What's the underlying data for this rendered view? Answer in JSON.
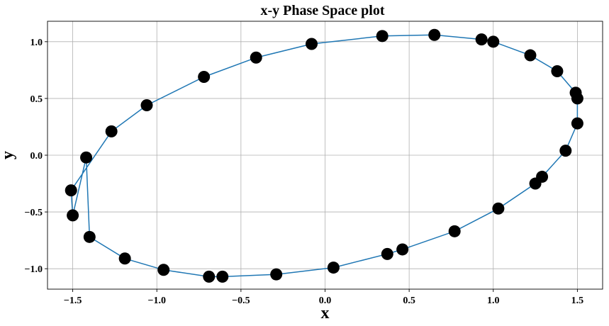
{
  "chart_data": {
    "type": "line",
    "title": "x-y Phase Space plot",
    "xlabel": "x",
    "ylabel": "y",
    "xlim": [
      -1.65,
      1.65
    ],
    "ylim": [
      -1.18,
      1.18
    ],
    "xticks": [
      -1.5,
      -1.0,
      -0.5,
      0.0,
      0.5,
      1.0,
      1.5
    ],
    "xtick_labels": [
      "−1.5",
      "−1.0",
      "−0.5",
      "0.0",
      "0.5",
      "1.0",
      "1.5"
    ],
    "yticks": [
      -1.0,
      -0.5,
      0.0,
      0.5,
      1.0
    ],
    "ytick_labels": [
      "−1.0",
      "−0.5",
      "0.0",
      "0.5",
      "1.0"
    ],
    "grid": true,
    "line_color": "#1f77b4",
    "marker_color": "#000000",
    "series": [
      {
        "points": [
          {
            "x": -0.29,
            "y": -1.05
          },
          {
            "x": -0.61,
            "y": -1.07
          },
          {
            "x": -0.69,
            "y": -1.07
          },
          {
            "x": -0.96,
            "y": -1.01
          },
          {
            "x": -1.19,
            "y": -0.91
          },
          {
            "x": -1.4,
            "y": -0.72
          },
          {
            "x": -1.42,
            "y": -0.02
          },
          {
            "x": -1.5,
            "y": -0.53
          },
          {
            "x": -1.51,
            "y": -0.31
          },
          {
            "x": -1.27,
            "y": 0.21
          },
          {
            "x": -1.06,
            "y": 0.44
          },
          {
            "x": -0.72,
            "y": 0.69
          },
          {
            "x": -0.41,
            "y": 0.86
          },
          {
            "x": -0.08,
            "y": 0.98
          },
          {
            "x": 0.34,
            "y": 1.05
          },
          {
            "x": 0.65,
            "y": 1.06
          },
          {
            "x": 0.93,
            "y": 1.02
          },
          {
            "x": 1.0,
            "y": 1.0
          },
          {
            "x": 1.22,
            "y": 0.88
          },
          {
            "x": 1.38,
            "y": 0.74
          },
          {
            "x": 1.49,
            "y": 0.55
          },
          {
            "x": 1.5,
            "y": 0.5
          },
          {
            "x": 1.5,
            "y": 0.28
          },
          {
            "x": 1.43,
            "y": 0.04
          },
          {
            "x": 1.29,
            "y": -0.19
          },
          {
            "x": 1.25,
            "y": -0.25
          },
          {
            "x": 1.03,
            "y": -0.47
          },
          {
            "x": 0.77,
            "y": -0.67
          },
          {
            "x": 0.46,
            "y": -0.83
          },
          {
            "x": 0.37,
            "y": -0.87
          },
          {
            "x": 0.05,
            "y": -0.99
          }
        ]
      }
    ]
  }
}
